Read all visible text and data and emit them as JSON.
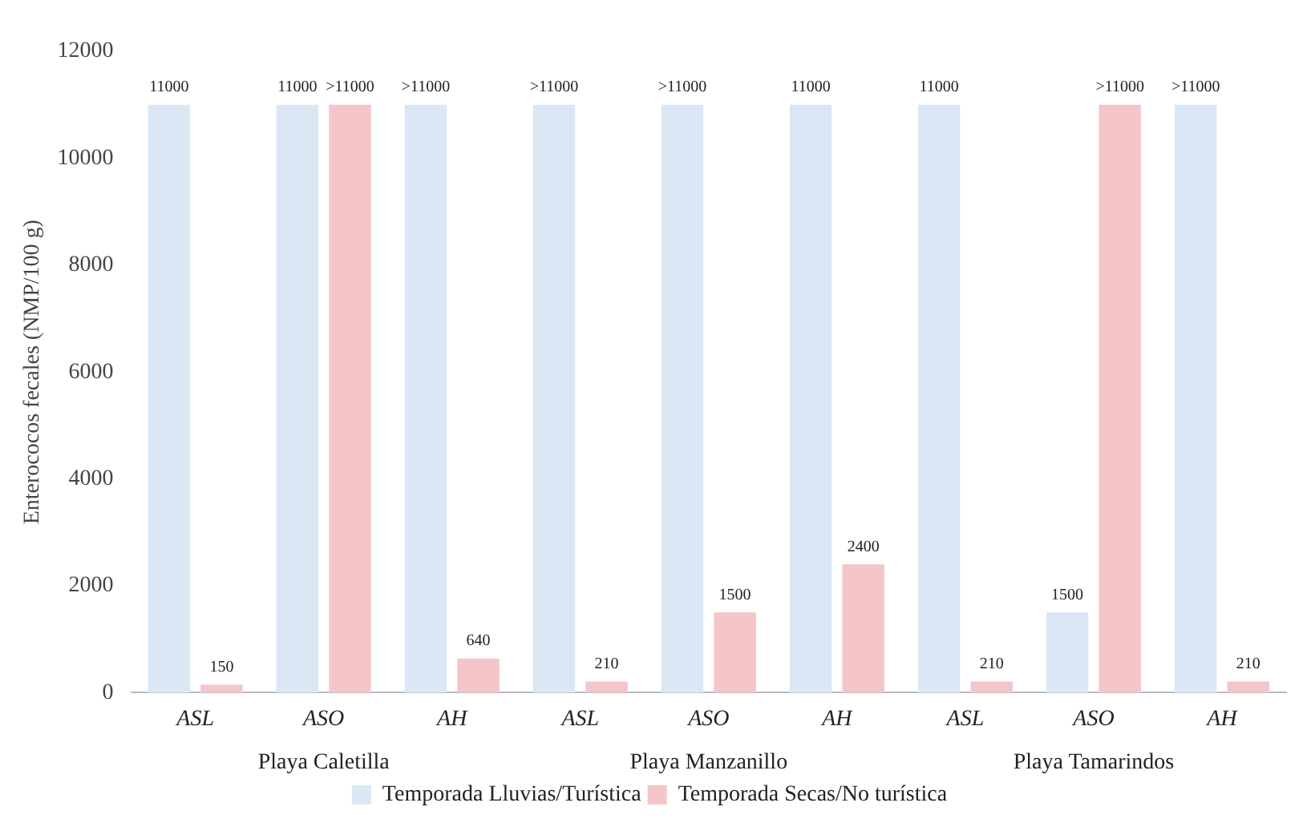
{
  "chart_data": {
    "type": "bar",
    "ylabel": "Enterococos fecales (NMP/100 g)",
    "categories": [
      "ASL",
      "ASO",
      "AH",
      "ASL",
      "ASO",
      "AH",
      "ASL",
      "ASO",
      "AH"
    ],
    "series": [
      {
        "name": "Temporada Lluvias/Turística",
        "color": "#dae8f5",
        "values": [
          11000,
          11000,
          11000,
          11000,
          11000,
          11000,
          11000,
          1500,
          11000
        ],
        "value_labels": [
          "11000",
          "11000",
          ">11000",
          ">11000",
          ">11000",
          "11000",
          "11000",
          "1500",
          ">11000"
        ]
      },
      {
        "name": "Temporada Secas/No turística",
        "color": "#f5c6c8",
        "values": [
          150,
          11000,
          640,
          210,
          1500,
          2400,
          210,
          11000,
          210
        ],
        "value_labels": [
          "150",
          ">11000",
          "640",
          "210",
          "1500",
          "2400",
          "210",
          ">11000",
          "210"
        ]
      }
    ],
    "annotations": [
      "Playa Caletilla",
      "Playa Manzanillo",
      "Playa Tamarindos"
    ],
    "ylim": [
      0,
      12000
    ],
    "yticks": [
      0,
      2000,
      4000,
      6000,
      8000,
      10000,
      12000
    ],
    "grid": false,
    "legend": "bottom"
  }
}
